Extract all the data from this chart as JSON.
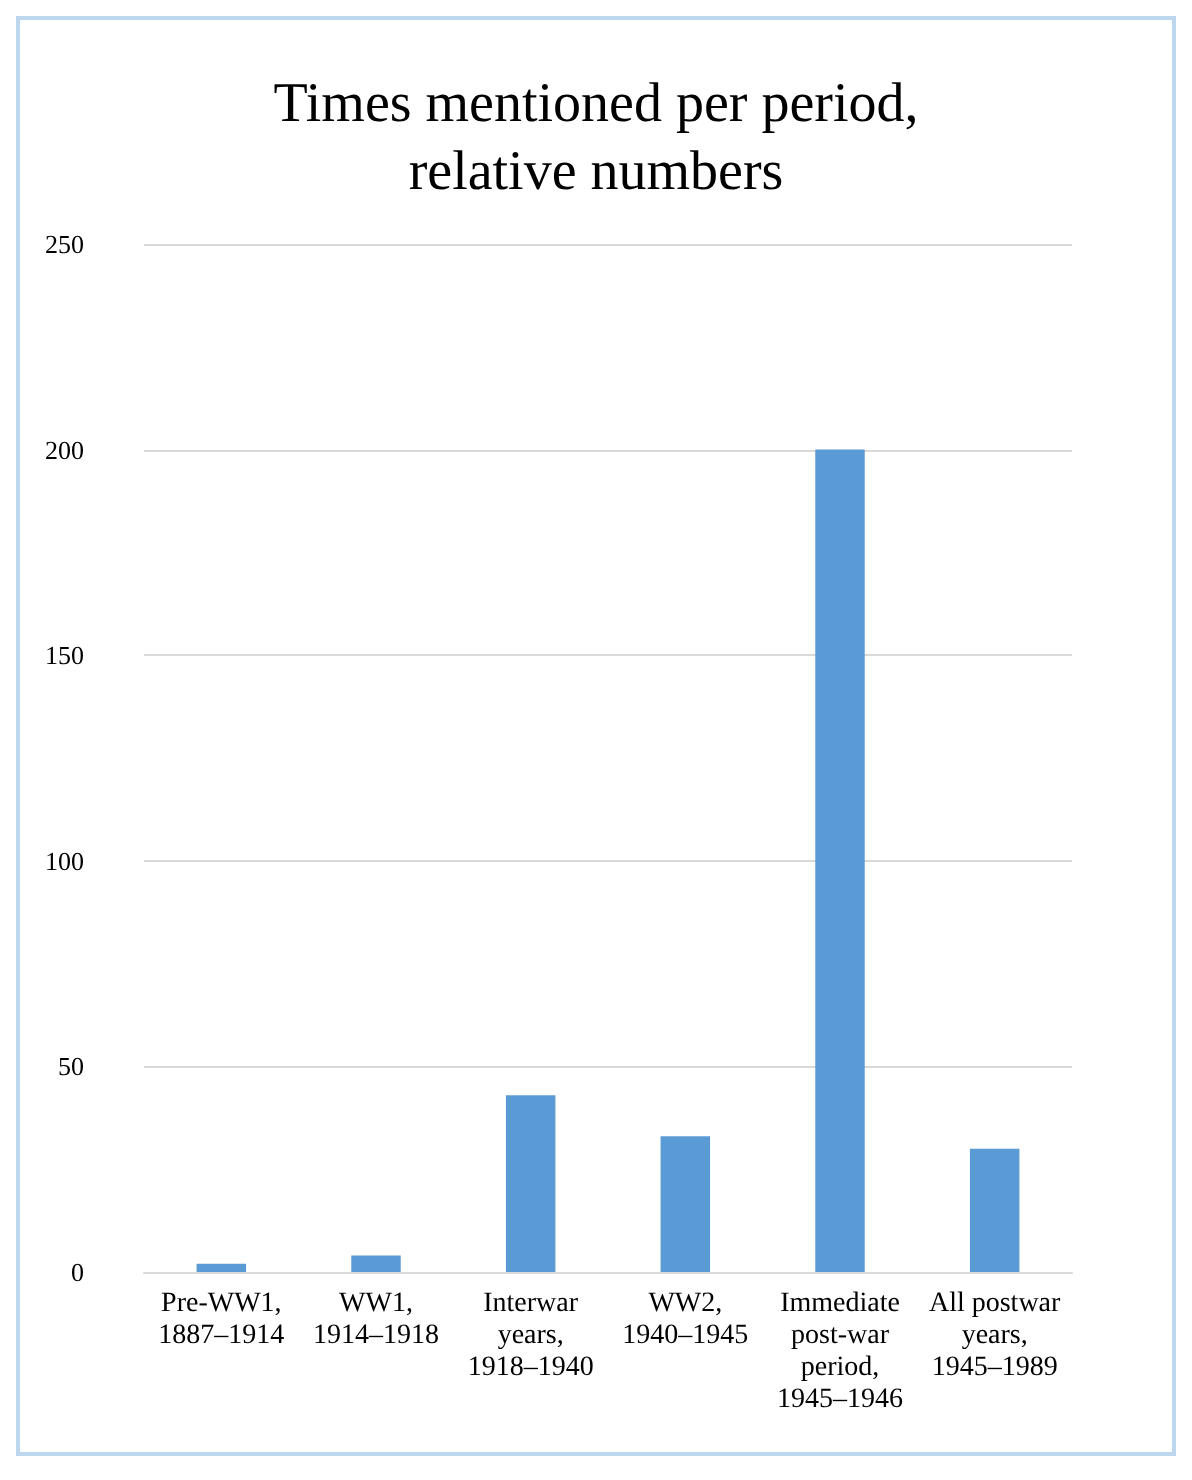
{
  "chart_data": {
    "type": "bar",
    "title": "Times mentioned per period,\nrelative numbers",
    "categories": [
      "Pre-WW1,\n1887–1914",
      "WW1,\n1914–1918",
      "Interwar\nyears,\n1918–1940",
      "WW2,\n1940–1945",
      "Immediate\npost-war\nperiod,\n1945–1946",
      "All postwar\nyears,\n1945–1989"
    ],
    "values": [
      2,
      4,
      43,
      33,
      200,
      30
    ],
    "color": "#5b9bd5",
    "ylim": [
      0,
      250
    ],
    "yticks": [
      0,
      50,
      100,
      150,
      200,
      250
    ],
    "grid": "y"
  }
}
